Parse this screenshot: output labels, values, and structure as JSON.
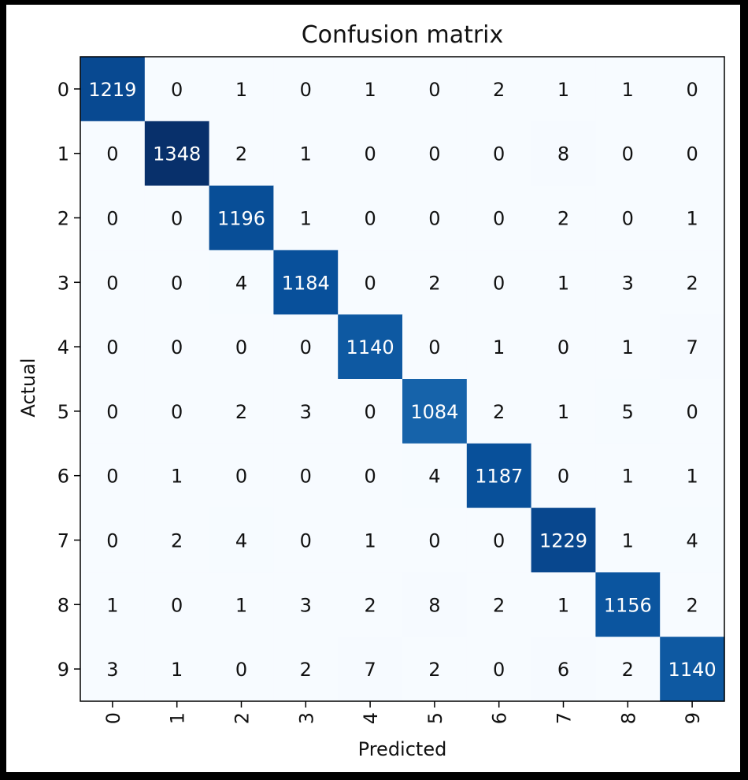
{
  "chart_data": {
    "type": "heatmap",
    "title": "Confusion matrix",
    "xlabel": "Predicted",
    "ylabel": "Actual",
    "x_tick_labels": [
      "0",
      "1",
      "2",
      "3",
      "4",
      "5",
      "6",
      "7",
      "8",
      "9"
    ],
    "y_tick_labels": [
      "0",
      "1",
      "2",
      "3",
      "4",
      "5",
      "6",
      "7",
      "8",
      "9"
    ],
    "colormap": "Blues",
    "matrix": [
      [
        1219,
        0,
        1,
        0,
        1,
        0,
        2,
        1,
        1,
        0
      ],
      [
        0,
        1348,
        2,
        1,
        0,
        0,
        0,
        8,
        0,
        0
      ],
      [
        0,
        0,
        1196,
        1,
        0,
        0,
        0,
        2,
        0,
        1
      ],
      [
        0,
        0,
        4,
        1184,
        0,
        2,
        0,
        1,
        3,
        2
      ],
      [
        0,
        0,
        0,
        0,
        1140,
        0,
        1,
        0,
        1,
        7
      ],
      [
        0,
        0,
        2,
        3,
        0,
        1084,
        2,
        1,
        5,
        0
      ],
      [
        0,
        1,
        0,
        0,
        0,
        4,
        1187,
        0,
        1,
        1
      ],
      [
        0,
        2,
        4,
        0,
        1,
        0,
        0,
        1229,
        1,
        4
      ],
      [
        1,
        0,
        1,
        3,
        2,
        8,
        2,
        1,
        1156,
        2
      ],
      [
        3,
        1,
        0,
        2,
        7,
        2,
        0,
        6,
        2,
        1140
      ]
    ]
  }
}
